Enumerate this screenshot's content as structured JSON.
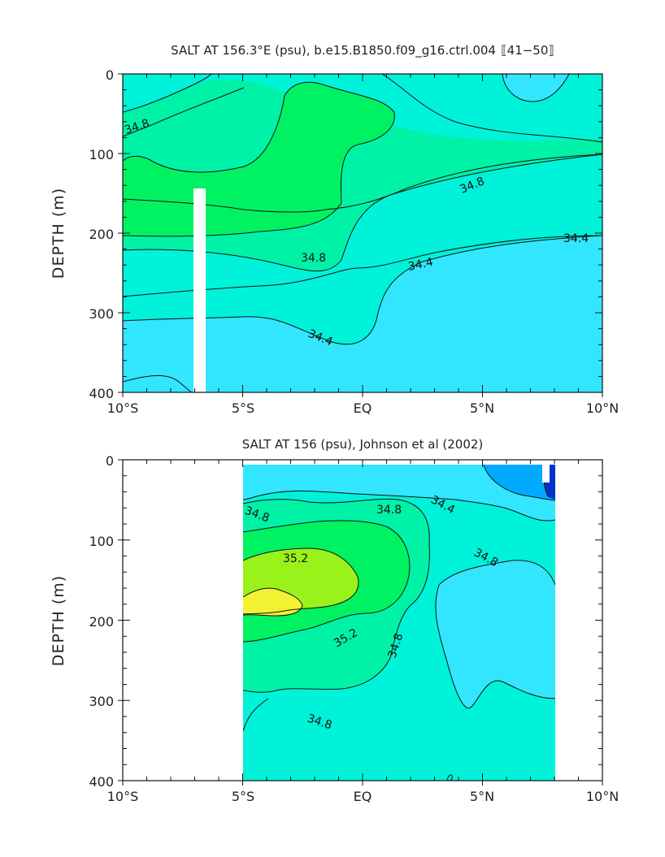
{
  "chart_data": [
    {
      "type": "contour",
      "title": "SALT AT 156.3°E (psu), b.e15.B1850.f09_g16.ctrl.004  ⟦41−50⟧",
      "ylabel": "DEPTH (m)",
      "xlabel": "",
      "x_ticks": [
        "10°S",
        "5°S",
        "EQ",
        "5°N",
        "10°N"
      ],
      "x_range": [
        -10,
        10
      ],
      "y_ticks": [
        "0",
        "100",
        "200",
        "300",
        "400"
      ],
      "y_range": [
        0,
        400
      ],
      "y_inverted": true,
      "contour_labels": [
        "34.8",
        "34.8",
        "34.8",
        "34.4",
        "34.4",
        "34.4"
      ],
      "colors": {
        "low": "#33e6ff",
        "mid": "#00f2d9",
        "midhigh": "#00f2a6",
        "high": "#00f263"
      }
    },
    {
      "type": "contour",
      "title": "SALT AT 156 (psu), Johnson et al (2002)",
      "ylabel": "DEPTH (m)",
      "xlabel": "",
      "x_ticks": [
        "10°S",
        "5°S",
        "EQ",
        "5°N",
        "10°N"
      ],
      "x_range": [
        -10,
        10
      ],
      "y_ticks": [
        "0",
        "100",
        "200",
        "300",
        "400"
      ],
      "y_range": [
        0,
        400
      ],
      "y_inverted": true,
      "data_x_extent": [
        -5,
        8
      ],
      "contour_labels": [
        "34.8",
        "34.8",
        "34.4",
        "35.2",
        "34.8",
        "35.2",
        "34.8",
        "34.8"
      ],
      "colors": {
        "deep_blue": "#0033cc",
        "blue": "#00aaff",
        "low": "#33e6ff",
        "mid": "#00f2d9",
        "midhigh": "#00f2a6",
        "high": "#00f263",
        "lime": "#99f21a",
        "yellow": "#f2f233"
      }
    }
  ]
}
